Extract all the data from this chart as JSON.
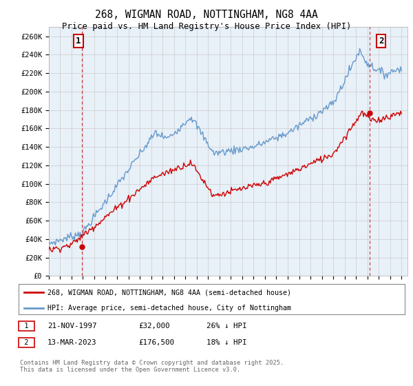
{
  "title": "268, WIGMAN ROAD, NOTTINGHAM, NG8 4AA",
  "subtitle": "Price paid vs. HM Land Registry's House Price Index (HPI)",
  "ylabel_ticks": [
    "£0",
    "£20K",
    "£40K",
    "£60K",
    "£80K",
    "£100K",
    "£120K",
    "£140K",
    "£160K",
    "£180K",
    "£200K",
    "£220K",
    "£240K",
    "£260K"
  ],
  "ytick_values": [
    0,
    20000,
    40000,
    60000,
    80000,
    100000,
    120000,
    140000,
    160000,
    180000,
    200000,
    220000,
    240000,
    260000
  ],
  "ylim": [
    0,
    270000
  ],
  "xlim_start": 1995.0,
  "xlim_end": 2026.5,
  "price_paid_color": "#cc0000",
  "hpi_color": "#6699cc",
  "grid_color": "#cccccc",
  "plot_bg_color": "#e8f0f8",
  "annotation_box_color": "#cc0000",
  "sale1_x": 1997.9,
  "sale1_y": 32000,
  "sale1_label": "1",
  "sale1_date": "21-NOV-1997",
  "sale1_price": "£32,000",
  "sale1_hpi": "26% ↓ HPI",
  "sale2_x": 2023.2,
  "sale2_y": 176500,
  "sale2_label": "2",
  "sale2_date": "13-MAR-2023",
  "sale2_price": "£176,500",
  "sale2_hpi": "18% ↓ HPI",
  "legend_label1": "268, WIGMAN ROAD, NOTTINGHAM, NG8 4AA (semi-detached house)",
  "legend_label2": "HPI: Average price, semi-detached house, City of Nottingham",
  "footer": "Contains HM Land Registry data © Crown copyright and database right 2025.\nThis data is licensed under the Open Government Licence v3.0.",
  "background_color": "#ffffff"
}
